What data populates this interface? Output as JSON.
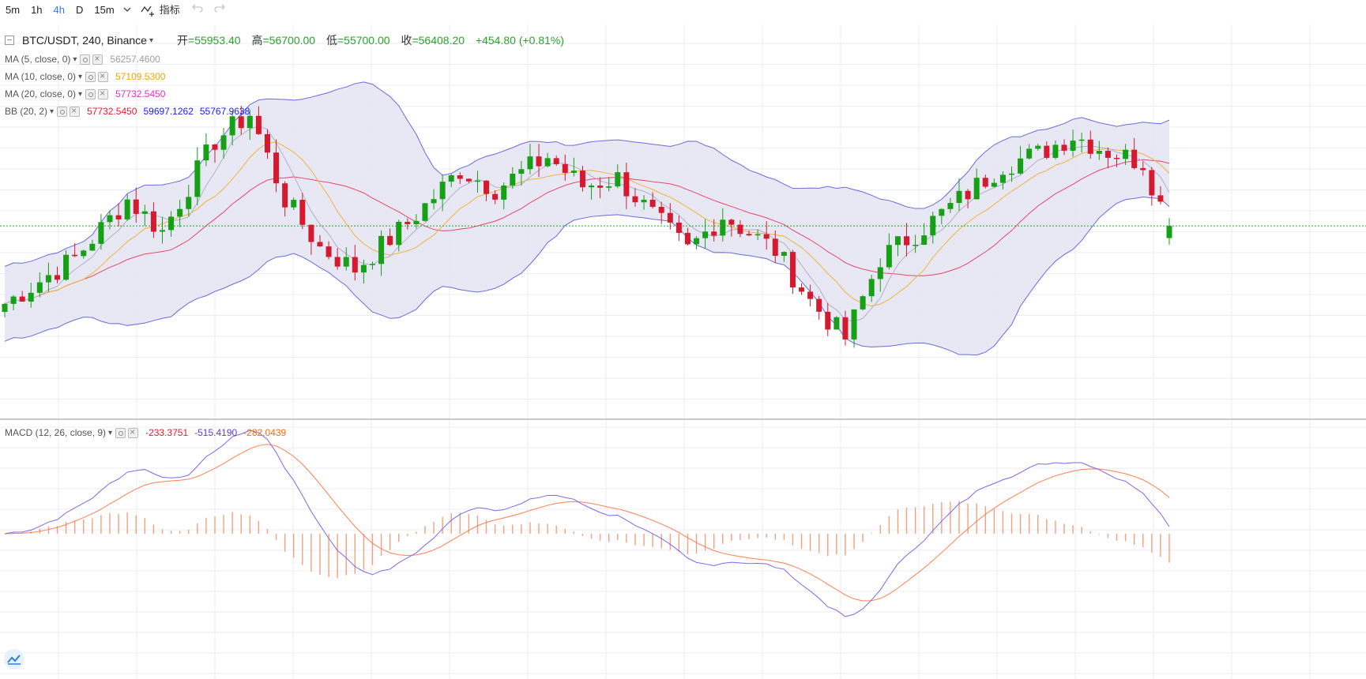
{
  "toolbar": {
    "intervals": [
      "5m",
      "1h",
      "4h",
      "D",
      "15m"
    ],
    "active_interval": "4h",
    "indicators_label": "指标"
  },
  "symbol": {
    "title": "BTC/USDT, 240, Binance",
    "open_label": "开",
    "open": "55953.40",
    "high_label": "高",
    "high": "56700.00",
    "low_label": "低",
    "low": "55700.00",
    "close_label": "收",
    "close": "56408.20",
    "change": "+454.80 (+0.81%)"
  },
  "legends": {
    "ma5": {
      "name": "MA (5, close, 0)",
      "value": "56257.4600",
      "color": "#9e9e9e"
    },
    "ma10": {
      "name": "MA (10, close, 0)",
      "value": "57109.5300",
      "color": "#f5a300"
    },
    "ma20": {
      "name": "MA (20, close, 0)",
      "value": "57732.5450",
      "color": "#e030c8"
    },
    "bb": {
      "name": "BB (20, 2)",
      "basis": "57732.5450",
      "upper": "59697.1262",
      "lower": "55767.9638",
      "basis_color": "#e8192c",
      "band_color": "#1a1aff"
    },
    "macd": {
      "name": "MACD (12, 26, close, 9)",
      "histogram": "-233.3751",
      "macd": "-515.4190",
      "signal": "-282.0439",
      "hist_color": "#e8192c",
      "macd_color": "#5b3bd6",
      "signal_color": "#ff6a00"
    }
  },
  "colors": {
    "up": "#16a016",
    "down": "#d51a2f",
    "band_line": "#6a6ae0",
    "band_fill": "#e4e4f2",
    "basis": "#e8456d",
    "ma10": "#f3b23c",
    "ma5": "#b0b0c8",
    "hist": "#f2a07e",
    "macd_line": "#7b68ee",
    "signal_line": "#ff7f50",
    "grid": "#e8eef5",
    "current_price": "#26a526"
  },
  "chart_data": {
    "type": "candlestick",
    "count": 134,
    "last": {
      "open": 55953.4,
      "high": 56700.0,
      "low": 55700.0,
      "close": 56408.2
    }
  }
}
